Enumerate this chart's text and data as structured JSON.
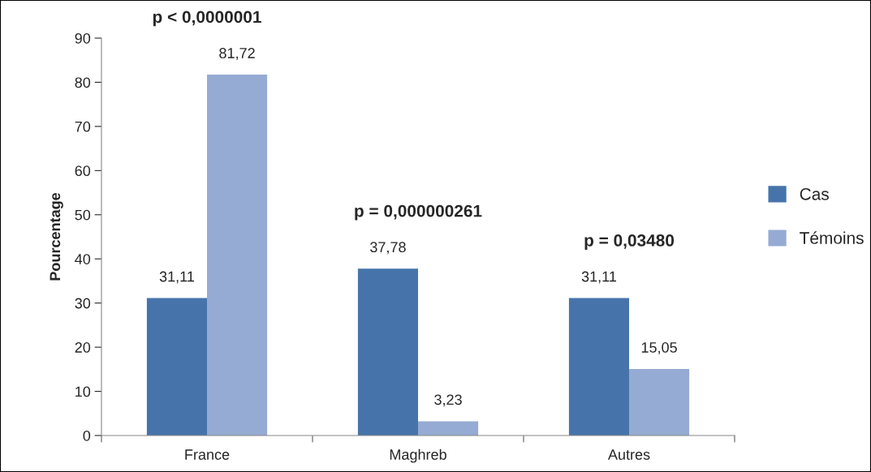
{
  "chart_data": {
    "type": "bar",
    "ylabel": "Pourcentage",
    "categories": [
      "France",
      "Maghreb",
      "Autres"
    ],
    "series": [
      {
        "name": "Cas",
        "color": "#4674aa",
        "values": [
          31.11,
          37.78,
          31.11
        ],
        "value_labels": [
          "31,11",
          "37,78",
          "31,11"
        ]
      },
      {
        "name": "Témoins",
        "color": "#95abd3",
        "values": [
          81.72,
          3.23,
          15.05
        ],
        "value_labels": [
          "81,72",
          "3,23",
          "15,05"
        ]
      }
    ],
    "ylim": [
      0,
      90
    ],
    "yticks": [
      0,
      10,
      20,
      30,
      40,
      50,
      60,
      70,
      80,
      90
    ],
    "annotations": [
      "p < 0,0000001",
      "p = 0,000000261",
      "p = 0,03480"
    ],
    "grid": false,
    "legend": "right"
  }
}
